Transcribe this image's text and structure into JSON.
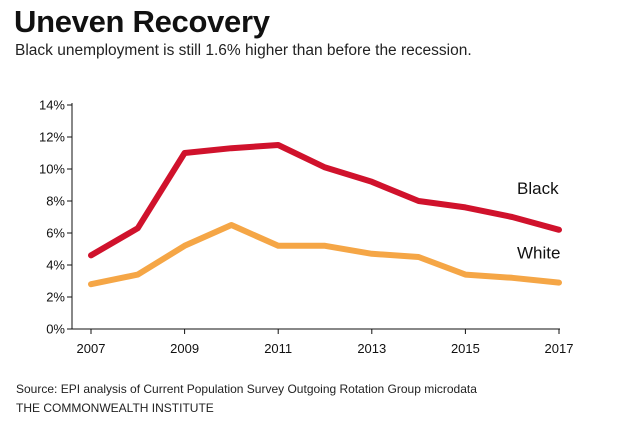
{
  "header": {
    "title": "Uneven Recovery",
    "subtitle": "Black unemployment is still 1.6% higher than before the recession."
  },
  "footer": {
    "source": "Source: EPI analysis of Current Population Survey Outgoing Rotation Group microdata",
    "org": "THE COMMONWEALTH INSTITUTE"
  },
  "chart_data": {
    "type": "line",
    "title": "Uneven Recovery",
    "subtitle": "Black unemployment is still 1.6% higher than before the recession.",
    "xlabel": "",
    "ylabel": "",
    "x": [
      2007,
      2008,
      2009,
      2010,
      2011,
      2012,
      2013,
      2014,
      2015,
      2016,
      2017
    ],
    "xticks": [
      "2007",
      "2009",
      "2011",
      "2013",
      "2015",
      "2017"
    ],
    "xlim": [
      2007,
      2017
    ],
    "ylim": [
      0,
      14
    ],
    "yticks": [
      "0%",
      "2%",
      "4%",
      "6%",
      "8%",
      "10%",
      "12%",
      "14%"
    ],
    "grid": false,
    "series": [
      {
        "name": "Black",
        "color": "#d0122c",
        "values": [
          4.6,
          6.3,
          11.0,
          11.3,
          11.5,
          10.1,
          9.2,
          8.0,
          7.6,
          7.0,
          6.2
        ]
      },
      {
        "name": "White",
        "color": "#f5a646",
        "values": [
          2.8,
          3.4,
          5.2,
          6.5,
          5.2,
          5.2,
          4.7,
          4.5,
          3.4,
          3.2,
          2.9
        ]
      }
    ]
  }
}
